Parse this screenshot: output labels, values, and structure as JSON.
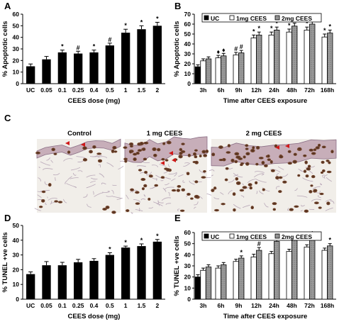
{
  "panels": {
    "A": "A",
    "B": "B",
    "C": "C",
    "D": "D",
    "E": "E"
  },
  "chart_data": [
    {
      "id": "A",
      "type": "bar",
      "ylabel": "% Apoptotic cells",
      "xlabel": "CEES dose (mg)",
      "ylim": [
        0,
        60
      ],
      "yticks": [
        "0",
        "10",
        "20",
        "30",
        "40",
        "50",
        "60"
      ],
      "categories": [
        "UC",
        "0.05",
        "0.1",
        "0.25",
        "0.4",
        "0.5",
        "1",
        "1.5",
        "2"
      ],
      "values": [
        15,
        21,
        27,
        26,
        27,
        33,
        44,
        47,
        50
      ],
      "errors": [
        2,
        2.5,
        2,
        2,
        2,
        2,
        3,
        3,
        3
      ],
      "sig": [
        "",
        "",
        "*",
        "#",
        "*",
        "#",
        "*",
        "*",
        "*"
      ]
    },
    {
      "id": "B",
      "type": "bar",
      "ylabel": "% Apoptotic cells",
      "xlabel": "Time after CEES exposure",
      "ylim": [
        0,
        70
      ],
      "yticks": [
        "0",
        "10",
        "20",
        "30",
        "40",
        "50",
        "60",
        "70"
      ],
      "categories": [
        "3h",
        "6h",
        "9h",
        "12h",
        "24h",
        "48h",
        "72h",
        "168h"
      ],
      "legend": [
        "UC",
        "1mg CEES",
        "2mg CEES"
      ],
      "series": [
        {
          "name": "UC",
          "values": [
            17,
            null,
            null,
            null,
            null,
            null,
            null,
            null
          ]
        },
        {
          "name": "1mg CEES",
          "values": [
            23,
            26,
            29,
            46,
            49,
            52,
            54,
            47
          ]
        },
        {
          "name": "2mg CEES",
          "values": [
            25,
            28,
            31,
            49,
            54,
            58,
            60,
            51
          ]
        }
      ],
      "errors": [
        2,
        2.5,
        2.5,
        3,
        3,
        3,
        3,
        3
      ],
      "sig1": [
        "",
        "♦",
        "#",
        "*",
        "*",
        "*",
        "*",
        "*"
      ],
      "sig2": [
        "",
        "♦",
        "#",
        "*",
        "*",
        "*",
        "*",
        "*"
      ]
    },
    {
      "id": "D",
      "type": "bar",
      "ylabel": "% TUNEL +ve cells",
      "xlabel": "CEES dose (mg)",
      "ylim": [
        0,
        50
      ],
      "yticks": [
        "0",
        "10",
        "20",
        "30",
        "40",
        "50"
      ],
      "categories": [
        "UC",
        "0.05",
        "0.1",
        "0.25",
        "0.4",
        "0.5",
        "1",
        "1.5",
        "2"
      ],
      "values": [
        17,
        23,
        23,
        25,
        26,
        30,
        35,
        36,
        39
      ],
      "errors": [
        1.5,
        2.5,
        2,
        2,
        1.5,
        1.5,
        1,
        1.5,
        1.5
      ],
      "sig": [
        "",
        "",
        "",
        "",
        "",
        "*",
        "*",
        "*",
        "*"
      ]
    },
    {
      "id": "E",
      "type": "bar",
      "ylabel": "% TUNEL +ve cells",
      "xlabel": "Time after CEES exposure",
      "ylim": [
        0,
        60
      ],
      "yticks": [
        "0",
        "10",
        "20",
        "30",
        "40",
        "50",
        "60"
      ],
      "categories": [
        "3h",
        "6h",
        "9h",
        "12h",
        "24h",
        "48h",
        "72h",
        "168h"
      ],
      "legend": [
        "UC",
        "1mg CEES",
        "2mg CEES"
      ],
      "series": [
        {
          "name": "UC",
          "values": [
            20,
            null,
            null,
            null,
            null,
            null,
            null,
            null
          ]
        },
        {
          "name": "1mg CEES",
          "values": [
            26,
            28,
            34,
            38,
            41,
            43,
            47,
            44
          ]
        },
        {
          "name": "2mg CEES",
          "values": [
            29,
            31,
            37,
            44,
            52,
            53,
            54,
            48
          ]
        }
      ],
      "errors": [
        2,
        2,
        2,
        2.5,
        2,
        2,
        2,
        2
      ],
      "sig1": [
        "",
        "",
        "",
        "",
        "",
        "",
        "",
        ""
      ],
      "sig2": [
        "",
        "",
        "*",
        "#",
        "*",
        "*",
        "*",
        "*"
      ]
    }
  ],
  "micrographs": {
    "labels": [
      "Control",
      "1 mg CEES",
      "2 mg CEES"
    ]
  }
}
